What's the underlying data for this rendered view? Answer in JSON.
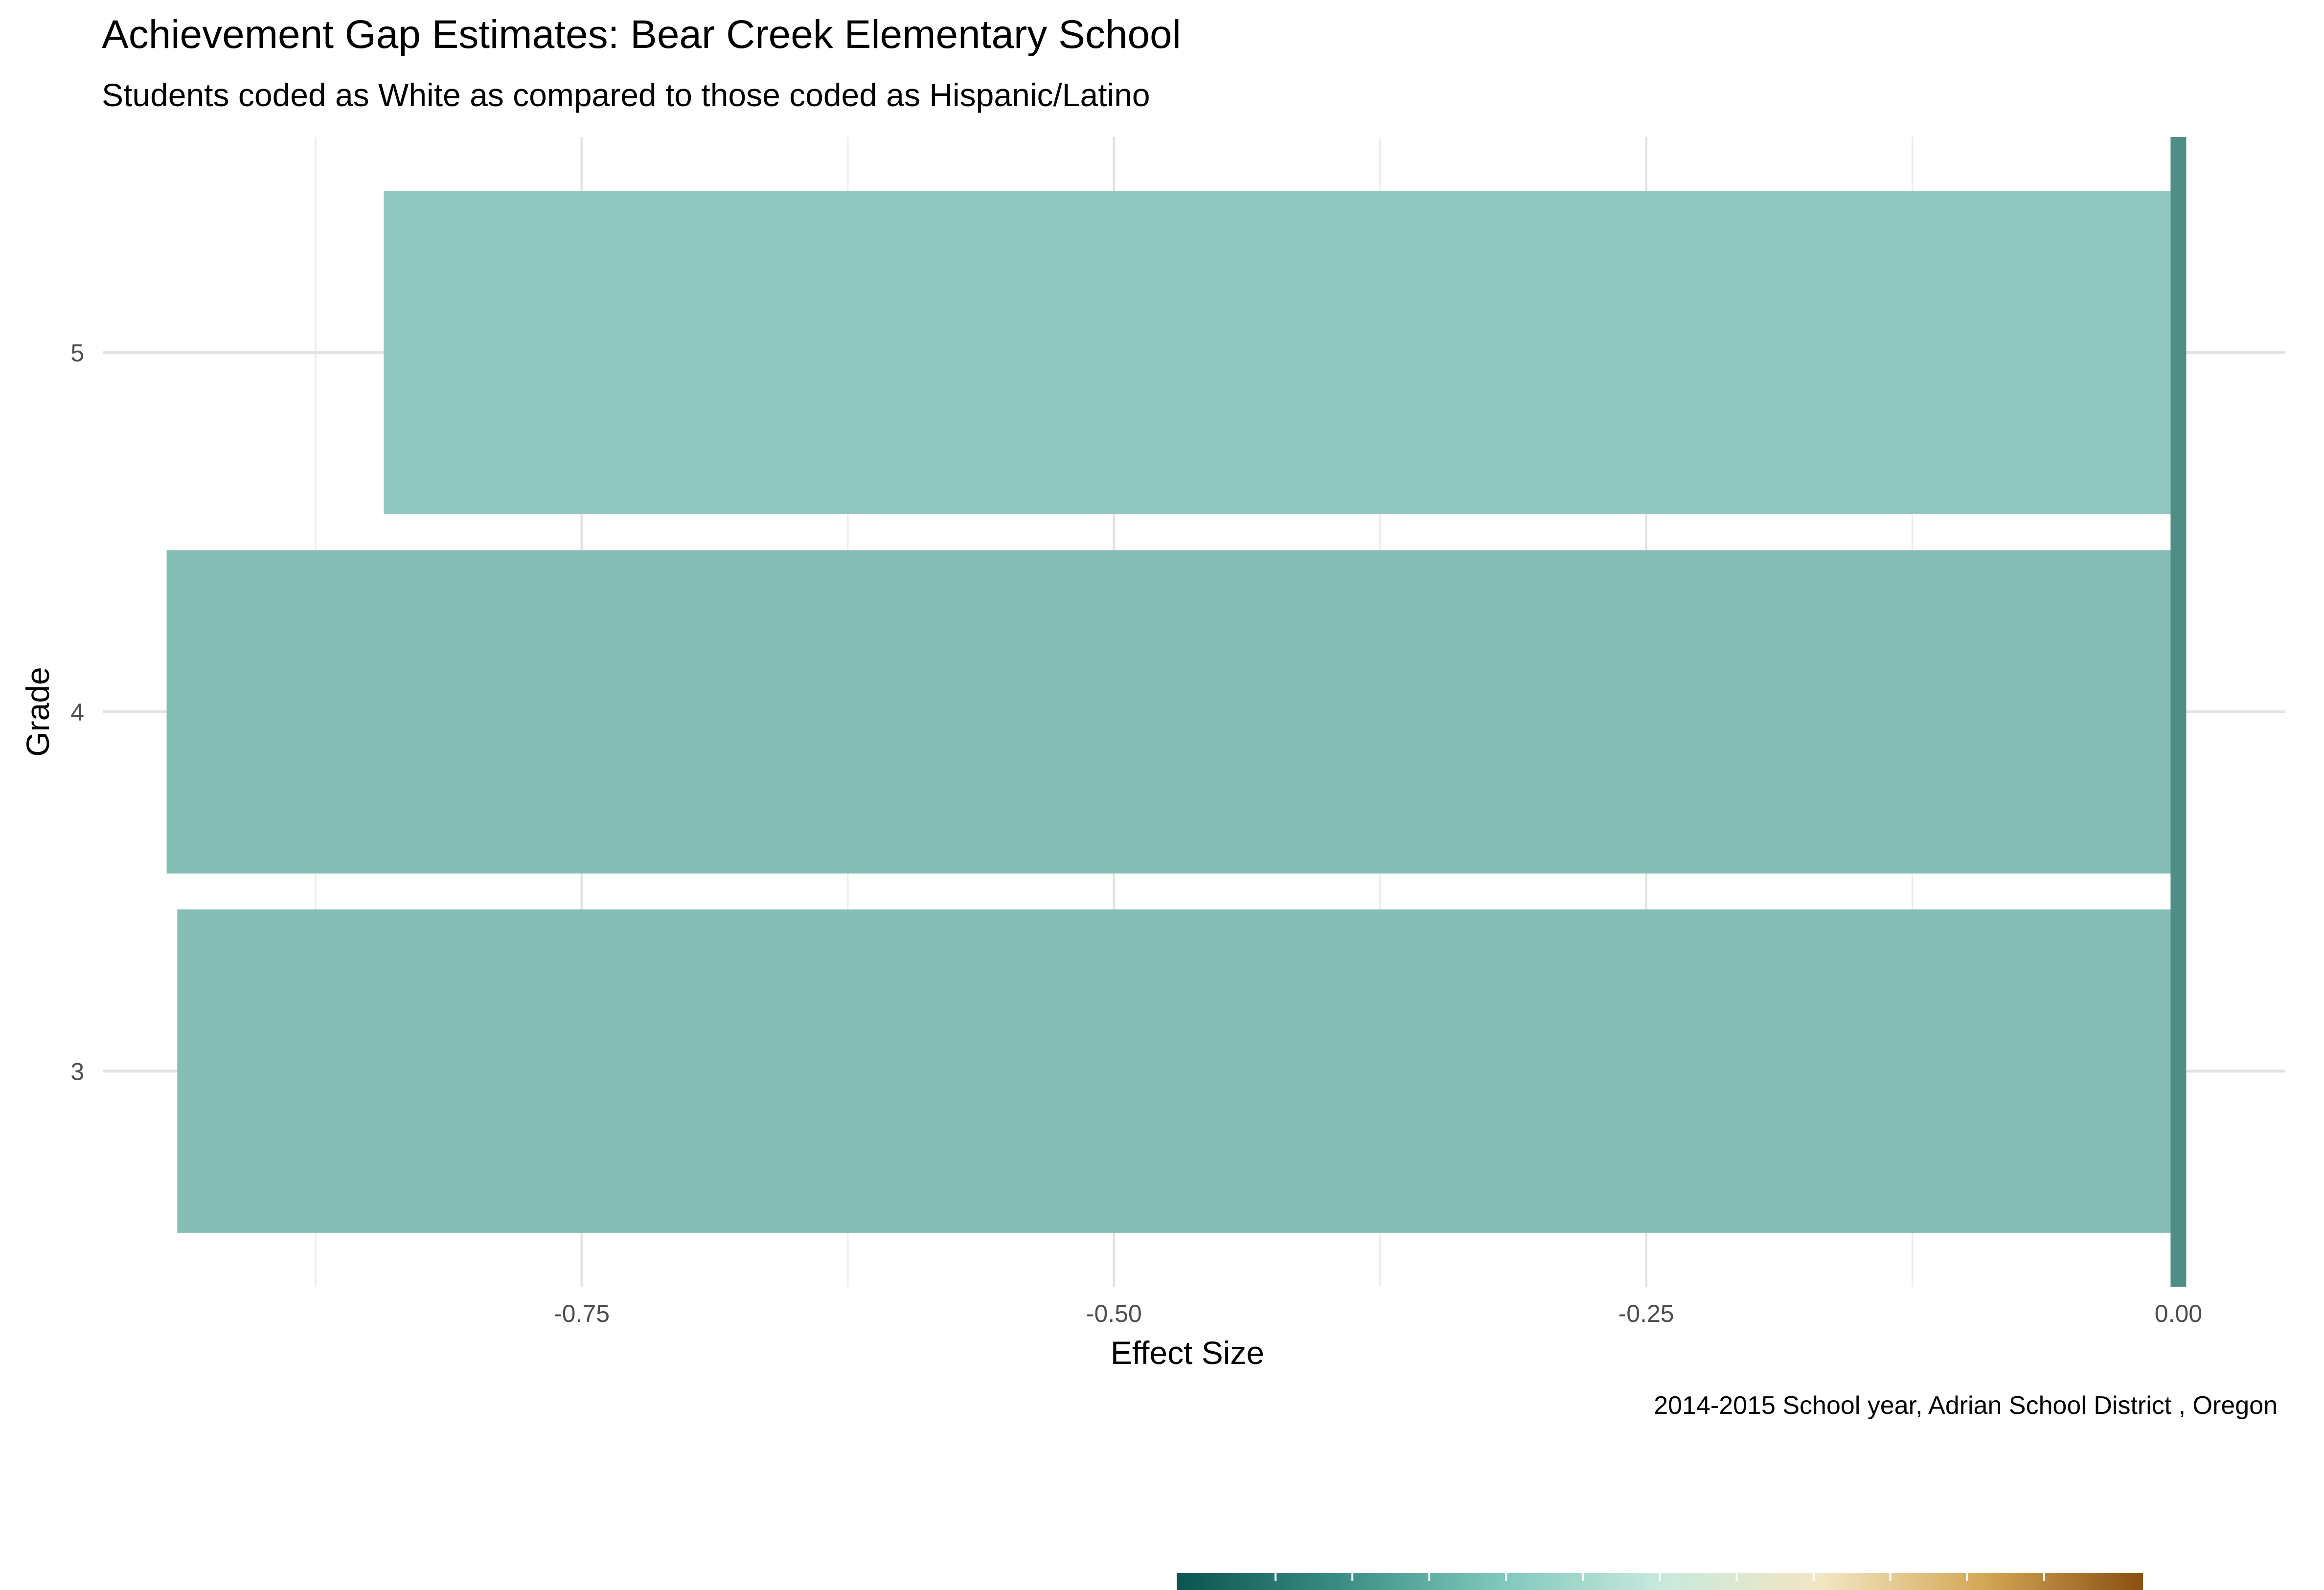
{
  "chart_data": {
    "type": "bar",
    "orientation": "horizontal",
    "title": "Achievement Gap Estimates: Bear Creek Elementary School",
    "subtitle": "Students coded as White as compared to those coded as Hispanic/Latino",
    "xlabel": "Effect Size",
    "ylabel": "Grade",
    "caption": "2014-2015 School year,  Adrian School District , Oregon",
    "categories": [
      "3",
      "4",
      "5"
    ],
    "values": [
      -0.94,
      -0.945,
      -0.843
    ],
    "bar_colors": [
      "#80bcb3",
      "#80bcb3",
      "#8cc6bd"
    ],
    "xlim": [
      -0.975,
      0.05
    ],
    "xticks": [
      -0.75,
      -0.5,
      -0.25,
      0.0
    ],
    "xtick_labels": [
      "-0.75",
      "-0.50",
      "-0.25",
      "0.00"
    ],
    "zero_line_color": "#4f8e86",
    "grid": true,
    "legend_colorbar": {
      "position": "bottom",
      "colors": [
        "#0b5450",
        "#3a8c83",
        "#7ec8bb",
        "#c7e9de",
        "#f3e6c3",
        "#d3a856",
        "#8a4f12"
      ]
    }
  }
}
